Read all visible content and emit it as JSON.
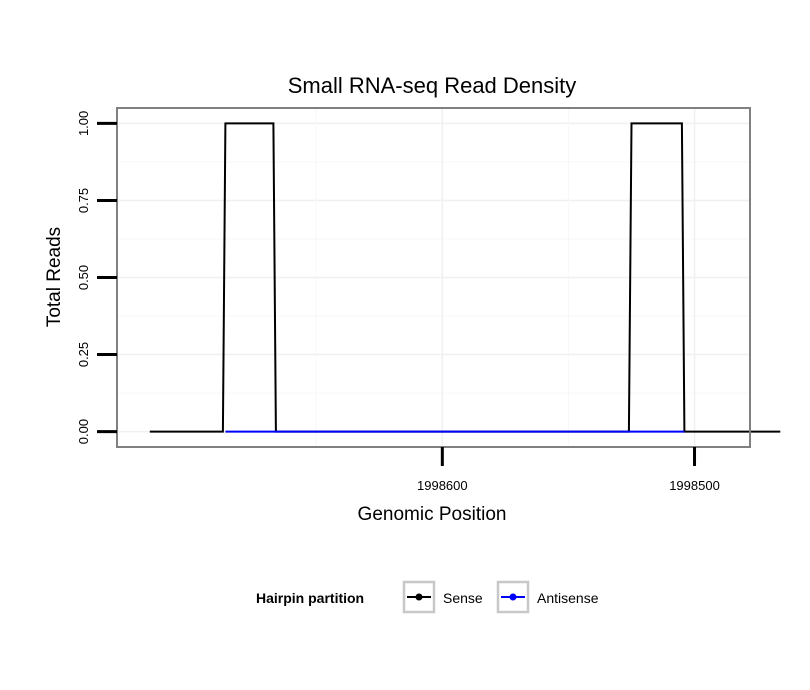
{
  "chart_data": {
    "type": "line",
    "title": "Small RNA-seq Read Density",
    "xlabel": "Genomic Position",
    "ylabel": "Total Reads",
    "x_axis_reversed": true,
    "xlim": [
      1998478,
      1998729
    ],
    "ylim": [
      -0.05,
      1.05
    ],
    "xticks": [
      1998600,
      1998500
    ],
    "yticks": [
      0.0,
      0.25,
      0.5,
      0.75,
      1.0
    ],
    "ytick_labels": [
      "0.00",
      "0.25",
      "0.50",
      "0.75",
      "1.00"
    ],
    "grid": true,
    "legend": {
      "title": "Hairpin partition",
      "position": "bottom"
    },
    "series": [
      {
        "name": "Sense",
        "color": "#000000",
        "x": [
          1998716,
          1998687,
          1998686,
          1998667,
          1998666,
          1998526,
          1998525,
          1998505,
          1998504,
          1998466
        ],
        "y": [
          0,
          0,
          1,
          1,
          0,
          0,
          1,
          1,
          0,
          0
        ]
      },
      {
        "name": "Antisense",
        "color": "#0000ff",
        "x": [
          1998686,
          1998666,
          1998525,
          1998504
        ],
        "y": [
          0,
          0,
          0,
          0
        ]
      }
    ]
  }
}
